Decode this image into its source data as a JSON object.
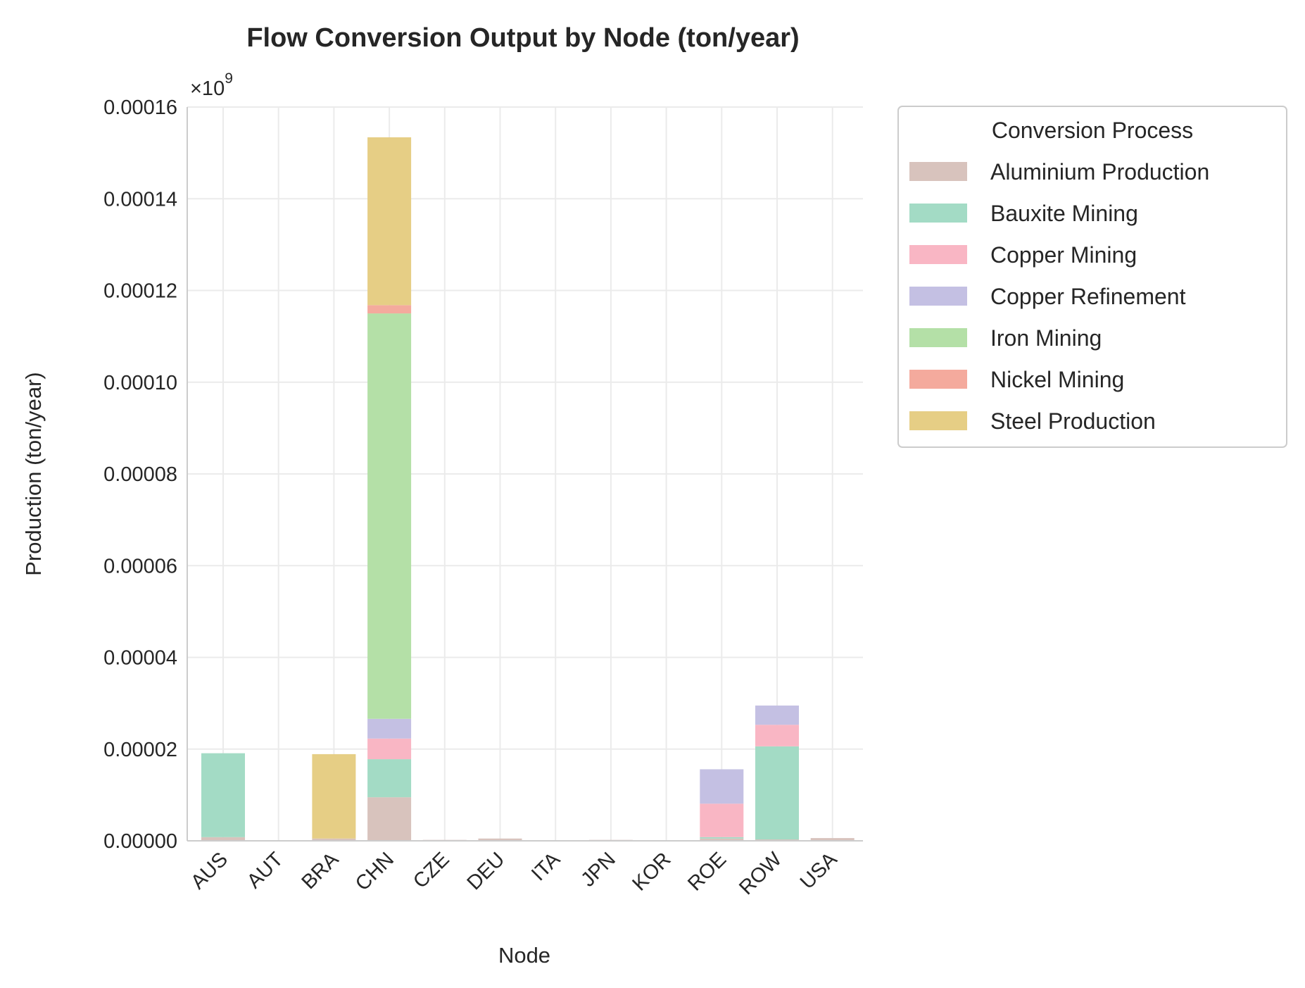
{
  "chart_data": {
    "type": "bar",
    "stacked": true,
    "title": "Flow Conversion Output by Node (ton/year)",
    "xlabel": "Node",
    "ylabel": "Production (ton/year)",
    "offset_text": "×10",
    "offset_exponent": "9",
    "ylim": [
      0,
      0.00016
    ],
    "yticks": [
      "0.00000",
      "0.00002",
      "0.00004",
      "0.00006",
      "0.00008",
      "0.00010",
      "0.00012",
      "0.00014",
      "0.00016"
    ],
    "grid": true,
    "legend": {
      "title": "Conversion Process",
      "placement": "outside-upper-right"
    },
    "categories": [
      "AUS",
      "AUT",
      "BRA",
      "CHN",
      "CZE",
      "DEU",
      "ITA",
      "JPN",
      "KOR",
      "ROE",
      "ROW",
      "USA"
    ],
    "series": [
      {
        "name": "Aluminium Production",
        "color": "#d8c3bd",
        "values": [
          8e-07,
          1e-07,
          5e-07,
          9.5e-06,
          2e-07,
          5e-07,
          1e-07,
          2e-07,
          1e-07,
          5e-07,
          3e-07,
          6e-07
        ]
      },
      {
        "name": "Bauxite Mining",
        "color": "#a3dbc5",
        "values": [
          1.83e-05,
          0,
          0,
          8.3e-06,
          0,
          0,
          0,
          0,
          0,
          3e-07,
          2.03e-05,
          0
        ]
      },
      {
        "name": "Copper Mining",
        "color": "#f9b6c4",
        "values": [
          0,
          0,
          0,
          4.5e-06,
          0,
          0,
          0,
          0,
          0,
          7.3e-06,
          4.7e-06,
          0
        ]
      },
      {
        "name": "Copper Refinement",
        "color": "#c4c0e3",
        "values": [
          0,
          0,
          0,
          4.3e-06,
          0,
          0,
          0,
          0,
          0,
          7.5e-06,
          4.2e-06,
          0
        ]
      },
      {
        "name": "Iron Mining",
        "color": "#b4e0a7",
        "values": [
          0,
          0,
          0,
          8.84e-05,
          0,
          0,
          0,
          0,
          0,
          0,
          0,
          0
        ]
      },
      {
        "name": "Nickel Mining",
        "color": "#f4aa9d",
        "values": [
          0,
          0,
          0,
          1.8e-06,
          0,
          0,
          0,
          0,
          0,
          0,
          0,
          0
        ]
      },
      {
        "name": "Steel Production",
        "color": "#e6ce85",
        "values": [
          0,
          0,
          1.84e-05,
          3.66e-05,
          0,
          0,
          0,
          0,
          0,
          0,
          0,
          0
        ]
      }
    ]
  }
}
